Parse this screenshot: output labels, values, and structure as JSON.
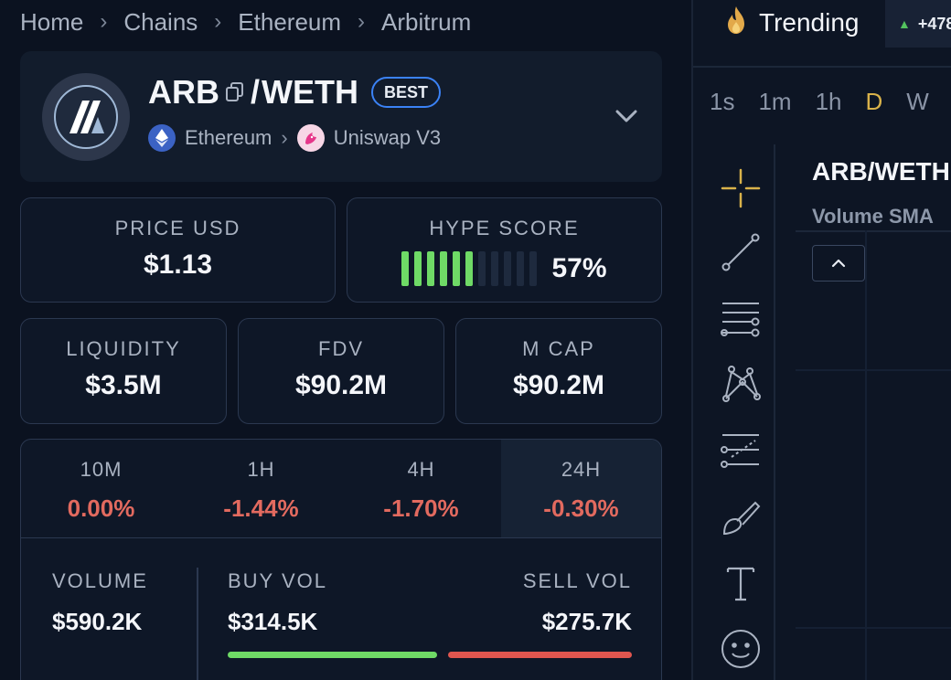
{
  "breadcrumb": [
    "Home",
    "Chains",
    "Ethereum",
    "Arbitrum"
  ],
  "token": {
    "base": "ARB",
    "slash": "/",
    "quote": "WETH",
    "badge": "BEST",
    "chain": "Ethereum",
    "dex": "Uniswap V3",
    "icons": [
      "arbitrum-logo",
      "copy-icon",
      "ethereum-icon",
      "uniswap-icon",
      "chevron-down-icon"
    ]
  },
  "stats": {
    "price": {
      "label": "PRICE USD",
      "value": "$1.13"
    },
    "hype": {
      "label": "HYPE SCORE",
      "value": "57%",
      "bars_filled": 6,
      "bars_total": 11
    },
    "liquidity": {
      "label": "LIQUIDITY",
      "value": "$3.5M"
    },
    "fdv": {
      "label": "FDV",
      "value": "$90.2M"
    },
    "mcap": {
      "label": "M CAP",
      "value": "$90.2M"
    }
  },
  "changes": [
    {
      "label": "10M",
      "value": "0.00%"
    },
    {
      "label": "1H",
      "value": "-1.44%"
    },
    {
      "label": "4H",
      "value": "-1.70%"
    },
    {
      "label": "24H",
      "value": "-0.30%",
      "active": true
    }
  ],
  "volume": {
    "volume_label": "VOLUME",
    "volume_value": "$590.2K",
    "buy_label": "BUY VOL",
    "buy_value": "$314.5K",
    "sell_label": "SELL VOL",
    "sell_value": "$275.7K",
    "buy_fraction": 0.533
  },
  "trending": {
    "label": "Trending",
    "chip_value": "+478"
  },
  "intervals": [
    {
      "label": "1s"
    },
    {
      "label": "1m"
    },
    {
      "label": "1h"
    },
    {
      "label": "D",
      "active": true
    },
    {
      "label": "W"
    }
  ],
  "chart": {
    "title": "ARB/WETH",
    "subtitle": "Volume SMA"
  },
  "colors": {
    "accent_blue": "#3b82f6",
    "positive": "#6fda66",
    "negative": "#e26a5f",
    "active_interval": "#d9b24a",
    "crosshair": "#d9b24a"
  }
}
